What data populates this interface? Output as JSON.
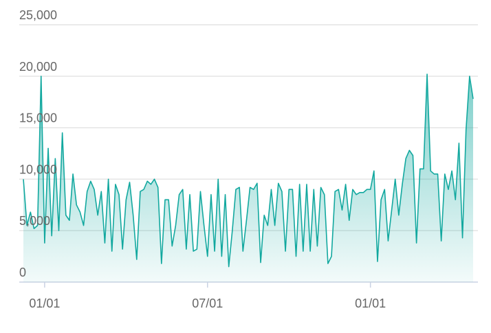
{
  "chart_data": {
    "type": "area",
    "color": "#12a89f",
    "grid": true,
    "categories": [
      null,
      null,
      null,
      null,
      null,
      null,
      "01/01",
      null,
      null,
      null,
      null,
      null,
      null,
      null,
      null,
      null,
      null,
      null,
      null,
      null,
      null,
      null,
      null,
      null,
      null,
      null,
      null,
      null,
      null,
      null,
      null,
      null,
      null,
      null,
      null,
      null,
      null,
      null,
      null,
      null,
      null,
      null,
      null,
      null,
      null,
      null,
      null,
      null,
      null,
      null,
      null,
      null,
      "07/01",
      null,
      null,
      null,
      null,
      null,
      null,
      null,
      null,
      null,
      null,
      null,
      null,
      null,
      null,
      null,
      null,
      null,
      null,
      null,
      null,
      null,
      null,
      null,
      null,
      null,
      null,
      null,
      null,
      null,
      null,
      null,
      null,
      null,
      null,
      null,
      null,
      null,
      null,
      null,
      null,
      null,
      null,
      null,
      null,
      null,
      "01/01",
      null,
      null,
      null,
      null,
      null,
      null,
      null,
      null,
      null,
      null,
      null,
      null,
      null,
      null,
      null,
      null,
      null,
      null,
      null,
      null,
      null,
      null,
      null,
      null,
      null,
      null,
      null,
      null,
      null
    ],
    "values": [
      10000,
      5500,
      6800,
      5200,
      5500,
      20000,
      3800,
      13000,
      4500,
      12000,
      5000,
      14500,
      6500,
      6000,
      10500,
      7500,
      6800,
      5500,
      8800,
      9800,
      9000,
      6500,
      8800,
      3800,
      10000,
      3000,
      9500,
      8500,
      3200,
      8000,
      9700,
      6500,
      2200,
      8800,
      9000,
      9800,
      9500,
      10000,
      9200,
      1800,
      8000,
      8000,
      3500,
      5500,
      8500,
      9000,
      3200,
      8500,
      3000,
      3200,
      8800,
      5500,
      2500,
      8500,
      3000,
      10000,
      2500,
      8500,
      1500,
      5000,
      9000,
      9200,
      3000,
      6000,
      9200,
      9000,
      9600,
      1900,
      6500,
      5500,
      9000,
      5500,
      9600,
      8800,
      3000,
      9000,
      9000,
      2500,
      9500,
      3000,
      9500,
      3000,
      9000,
      3500,
      9200,
      8500,
      1800,
      2500,
      8800,
      9000,
      7000,
      9500,
      6000,
      9000,
      8500,
      8700,
      8700,
      9000,
      9000,
      10800,
      2000,
      8000,
      9000,
      4000,
      7000,
      10000,
      6500,
      9500,
      12000,
      12800,
      12300,
      3800,
      11000,
      11000,
      20200,
      10800,
      10500,
      10500,
      4000,
      10500,
      9000,
      10800,
      8000,
      13500,
      4300,
      14800,
      20000,
      17800
    ],
    "ylim": [
      0,
      25000
    ],
    "yticks": [
      0,
      {
        "value": 5000,
        "label": "5,000"
      },
      {
        "value": 10000,
        "label": "10,000"
      },
      {
        "value": 15000,
        "label": "15,000"
      },
      {
        "value": 20000,
        "label": "20,000"
      },
      {
        "value": 25000,
        "label": "25,000"
      }
    ]
  }
}
